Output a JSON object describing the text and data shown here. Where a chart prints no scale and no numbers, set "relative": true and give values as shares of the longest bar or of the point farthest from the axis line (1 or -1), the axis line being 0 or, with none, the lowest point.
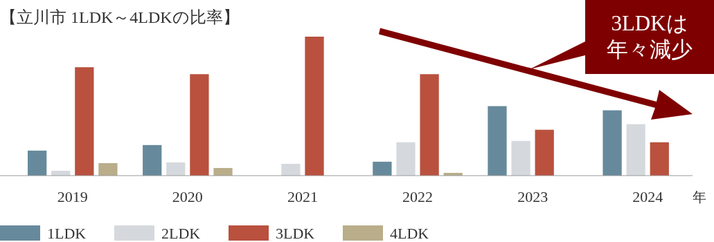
{
  "chart_data": {
    "type": "bar",
    "title": "【立川市 1LDK～4LDKの比率】",
    "xlabel": "年",
    "relative": true,
    "legend": "bottom",
    "categories": [
      "2019",
      "2020",
      "2021",
      "2022",
      "2023",
      "2024"
    ],
    "series": [
      {
        "name": "1LDK",
        "color": "#668a9c",
        "values": [
          0.18,
          0.22,
          null,
          0.1,
          0.5,
          0.47
        ]
      },
      {
        "name": "2LDK",
        "color": "#d5d9dd",
        "values": [
          0.035,
          0.095,
          0.085,
          0.24,
          0.25,
          0.37
        ]
      },
      {
        "name": "3LDK",
        "color": "#b9513e",
        "values": [
          0.78,
          0.73,
          1,
          0.73,
          0.33,
          0.24
        ]
      },
      {
        "name": "4LDK",
        "color": "#b9ad8a",
        "values": [
          0.09,
          0.055,
          null,
          0.02,
          null,
          null
        ]
      }
    ],
    "annotations": [
      "3LDKは",
      "年々減少"
    ]
  }
}
